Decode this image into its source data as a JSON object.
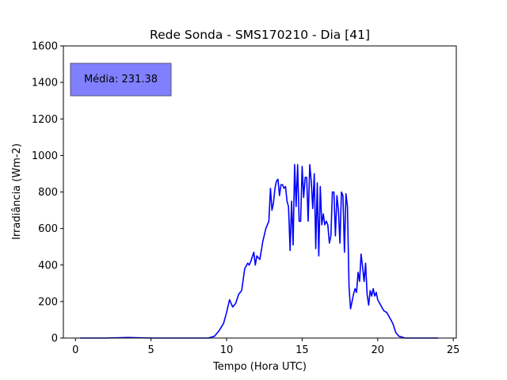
{
  "chart_data": {
    "type": "line",
    "title": "Rede Sonda - SMS170210 - Dia [41]",
    "xlabel": "Tempo (Hora UTC)",
    "ylabel": "Irradiância (Wm-2)",
    "xlim": [
      -0.8,
      25.2
    ],
    "ylim": [
      0,
      1600
    ],
    "xticks": [
      0,
      5,
      10,
      15,
      20,
      25
    ],
    "yticks": [
      0,
      200,
      400,
      600,
      800,
      1000,
      1200,
      1400,
      1600
    ],
    "grid": false,
    "annotation": "Média: 231.38",
    "colors": {
      "line": "#0000ff",
      "annotation_box": "#8080ff"
    },
    "series": [
      {
        "x": [
          0.3,
          2.0,
          3.5,
          4.0,
          5.0,
          6.0,
          7.0,
          8.0,
          8.8,
          9.2,
          9.5,
          9.8,
          10.0,
          10.2,
          10.4,
          10.6,
          10.8,
          11.0,
          11.2,
          11.4,
          11.5,
          11.6,
          11.8,
          11.9,
          12.0,
          12.1,
          12.2,
          12.4,
          12.6,
          12.8,
          12.9,
          13.0,
          13.1,
          13.2,
          13.3,
          13.4,
          13.5,
          13.6,
          13.7,
          13.8,
          13.9,
          14.0,
          14.1,
          14.2,
          14.3,
          14.4,
          14.5,
          14.6,
          14.7,
          14.8,
          14.9,
          15.0,
          15.1,
          15.2,
          15.3,
          15.4,
          15.5,
          15.6,
          15.7,
          15.8,
          15.9,
          16.0,
          16.1,
          16.2,
          16.3,
          16.4,
          16.5,
          16.6,
          16.7,
          16.8,
          16.9,
          17.0,
          17.1,
          17.2,
          17.3,
          17.4,
          17.5,
          17.6,
          17.7,
          17.8,
          17.9,
          18.0,
          18.1,
          18.2,
          18.3,
          18.4,
          18.5,
          18.6,
          18.7,
          18.8,
          18.9,
          19.0,
          19.1,
          19.2,
          19.3,
          19.4,
          19.5,
          19.6,
          19.7,
          19.8,
          19.9,
          20.0,
          20.2,
          20.4,
          20.6,
          20.8,
          21.0,
          21.2,
          21.4,
          21.6,
          21.8,
          22.0,
          23.0,
          24.0
        ],
        "y": [
          0,
          0,
          3,
          2,
          0,
          0,
          0,
          0,
          0,
          10,
          40,
          80,
          140,
          210,
          170,
          190,
          240,
          260,
          380,
          410,
          400,
          420,
          470,
          400,
          450,
          440,
          430,
          530,
          600,
          640,
          820,
          700,
          740,
          820,
          860,
          870,
          780,
          840,
          840,
          820,
          830,
          750,
          720,
          480,
          750,
          510,
          950,
          720,
          950,
          640,
          640,
          940,
          770,
          880,
          880,
          640,
          950,
          860,
          710,
          900,
          490,
          850,
          450,
          830,
          620,
          680,
          620,
          640,
          620,
          520,
          560,
          800,
          800,
          560,
          780,
          700,
          520,
          800,
          780,
          470,
          790,
          720,
          280,
          160,
          200,
          240,
          270,
          250,
          360,
          310,
          460,
          390,
          310,
          410,
          240,
          180,
          260,
          230,
          270,
          230,
          250,
          210,
          180,
          150,
          140,
          110,
          80,
          30,
          10,
          5,
          0,
          0,
          0,
          0
        ]
      }
    ]
  }
}
